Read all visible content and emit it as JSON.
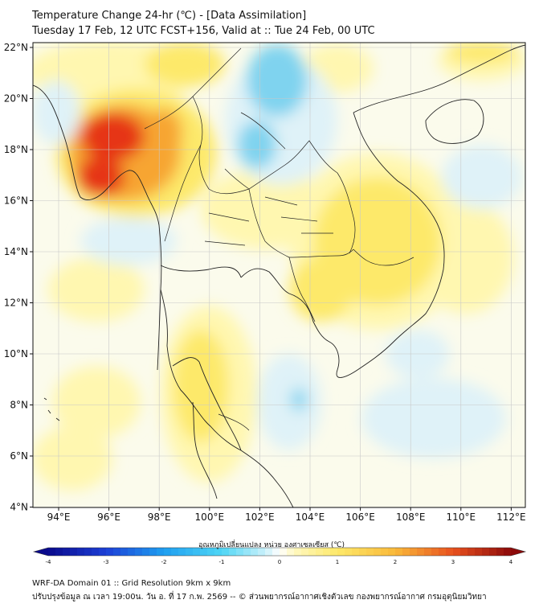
{
  "header": {
    "title_line1": "Temperature Change 24-hr (℃) - [Data Assimilation]",
    "title_line2": "Tuesday 17 Feb, 12 UTC FCST+156, Valid at :: Tue 24 Feb, 00 UTC"
  },
  "map": {
    "lat_labels": [
      "22°N",
      "20°N",
      "18°N",
      "16°N",
      "14°N",
      "12°N",
      "10°N",
      "8°N",
      "6°N",
      "4°N"
    ],
    "lon_labels": [
      "94°E",
      "96°E",
      "98°E",
      "100°E",
      "102°E",
      "104°E",
      "106°E",
      "108°E",
      "110°E",
      "112°E"
    ],
    "colors": {
      "background": "#fbfbec",
      "warm_light": "#fff7b0",
      "warm": "#fde96a",
      "orange": "#f7a531",
      "red": "#e63418",
      "cool_light": "#dff2f8",
      "cool": "#7fd3ef",
      "grid": "#c8c8c8",
      "coast": "#222222"
    }
  },
  "colorbar": {
    "label": "อุณหภูมิเปลี่ยนแปลง หน่วย องศาเซลเซียส (℃)",
    "ticks": [
      "-4",
      "-3",
      "-2",
      "-1",
      "0",
      "1",
      "2",
      "3",
      "4"
    ],
    "min": -4,
    "max": 4
  },
  "footer": {
    "line1": "WRF-DA Domain 01 :: Grid Resolution 9km x 9km",
    "line2": "ปรับปรุงข้อมูล ณ เวลา 19:00น. วัน อ. ที่ 17 ก.พ. 2569 -- © ส่วนพยากรณ์อากาศเชิงตัวเลข กองพยากรณ์อากาศ กรมอุตุนิยมวิทยา"
  }
}
